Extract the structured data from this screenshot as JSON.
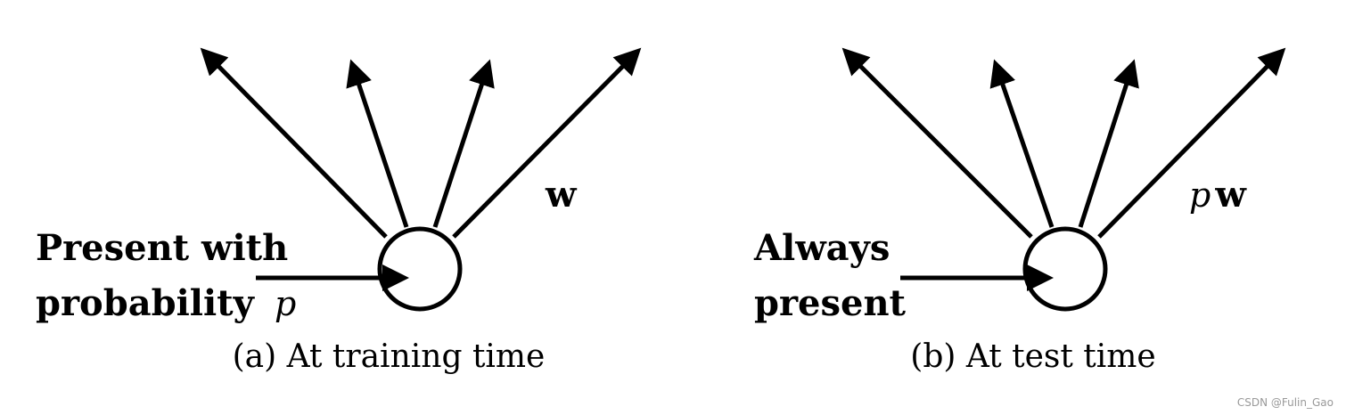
{
  "colors": {
    "ink": "#000000",
    "background": "#ffffff",
    "watermark": "#999999"
  },
  "panel_a": {
    "input_label_line1": "Present with",
    "input_label_line2": "probability",
    "input_label_var": "p",
    "weight_label": "w",
    "caption": "(a) At training time"
  },
  "panel_b": {
    "input_label_line1": "Always",
    "input_label_line2": "present",
    "weight_label_var": "p",
    "weight_label": "w",
    "caption": "(b) At test time"
  },
  "watermark": "CSDN @Fulin_Gao"
}
